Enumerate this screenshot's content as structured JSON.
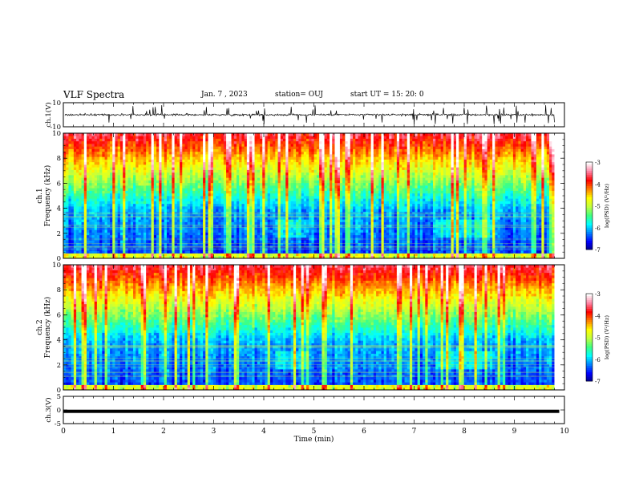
{
  "header": {
    "title": "VLF Spectra",
    "date": "Jan. 7 , 2023",
    "station": "station= OUJ",
    "start": "start UT =  15: 20: 0"
  },
  "colors": {
    "background": "#ffffff",
    "axis": "#000000",
    "waveform": "#000000"
  },
  "colormap": [
    "#00007f",
    "#0000ff",
    "#0080ff",
    "#00ffff",
    "#40ff80",
    "#c0ff40",
    "#ffff00",
    "#ff8000",
    "#ff0000",
    "#ff80a0",
    "#ffffff"
  ],
  "chart_data": [
    {
      "type": "line",
      "panel": "ch1-waveform",
      "ylabel": "ch.1(V)",
      "ylim": [
        -10,
        10
      ],
      "yticks": [
        "10",
        "-10"
      ],
      "xlim": [
        0,
        10
      ],
      "baseline": 0,
      "amplitude_range": [
        -2.5,
        2.5
      ]
    },
    {
      "type": "heatmap",
      "panel": "ch1-spectrogram",
      "ylabel": [
        "ch.1",
        "Frequency  (kHz)"
      ],
      "ylim": [
        0,
        10
      ],
      "yticks": [
        "0",
        "2",
        "4",
        "6",
        "8",
        "10"
      ],
      "xlim": [
        0,
        10
      ],
      "data_end_min": 9.8,
      "colorbar": {
        "label": "log(PSD) (V²/Hz)",
        "ticks": [
          "-3",
          "-4",
          "-5",
          "-6",
          "-7"
        ],
        "range": [
          -7,
          -3
        ]
      }
    },
    {
      "type": "heatmap",
      "panel": "ch2-spectrogram",
      "ylabel": [
        "ch.2",
        "Frequency  (kHz)"
      ],
      "ylim": [
        0,
        10
      ],
      "yticks": [
        "0",
        "2",
        "4",
        "6",
        "8",
        "10"
      ],
      "xlim": [
        0,
        10
      ],
      "data_end_min": 9.8,
      "colorbar": {
        "label": "log(PSD) (V²/Hz)",
        "ticks": [
          "-3",
          "-4",
          "-5",
          "-6",
          "-7"
        ],
        "range": [
          -7,
          -3
        ]
      }
    },
    {
      "type": "line",
      "panel": "ch3-waveform",
      "ylabel": "ch.3(V)",
      "ylim": [
        -5,
        5
      ],
      "yticks": [
        "5",
        "0",
        "-5"
      ],
      "xlim": [
        0,
        10
      ],
      "baseline": -0.5,
      "xlabel": "Time  (min)",
      "xticks": [
        "0",
        "1",
        "2",
        "3",
        "4",
        "5",
        "6",
        "7",
        "8",
        "9",
        "10"
      ]
    }
  ]
}
